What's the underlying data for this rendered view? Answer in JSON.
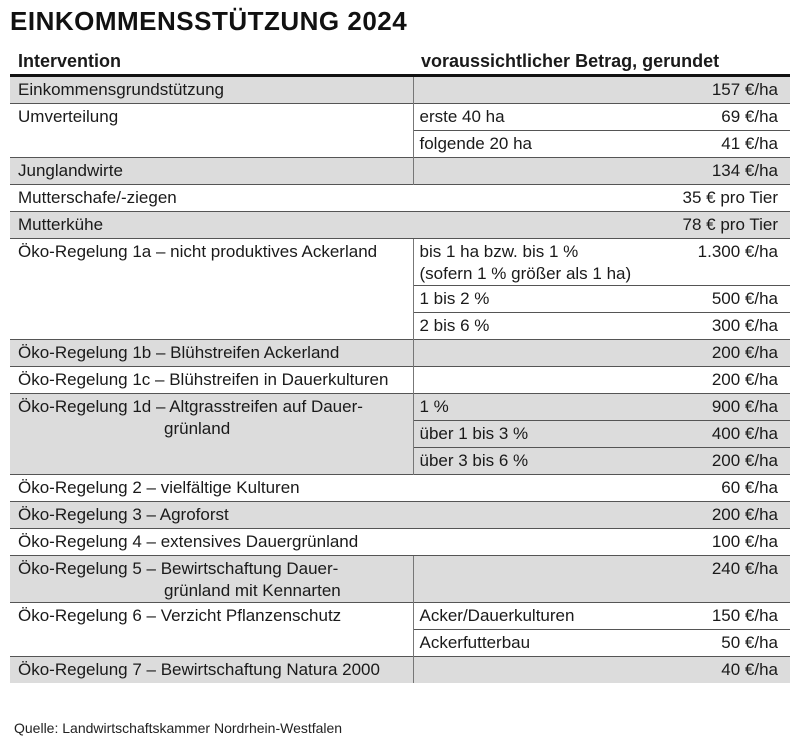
{
  "title": "EINKOMMENSSTÜTZUNG 2024",
  "header": {
    "col1": "Intervention",
    "col2": "voraussichtlicher Betrag, gerundet"
  },
  "rows": {
    "r1": {
      "name": "Einkommensgrundstützung",
      "value": "157 €/ha"
    },
    "r2": {
      "name": "Umverteilung",
      "c1": "erste 40 ha",
      "v1": "69 €/ha",
      "c2": "folgende 20 ha",
      "v2": "41 €/ha"
    },
    "r3": {
      "name": "Junglandwirte",
      "value": "134 €/ha"
    },
    "r4": {
      "name": "Mutterschafe/-ziegen",
      "value": "35 € pro Tier"
    },
    "r5": {
      "name": "Mutterkühe",
      "value": "78 € pro Tier"
    },
    "r6": {
      "name": "Öko-Regelung 1a – nicht produktives Ackerland",
      "c1a": "bis 1 ha bzw. bis 1 %",
      "c1b": "(sofern 1 % größer als 1 ha)",
      "v1": "1.300 €/ha",
      "c2": "1 bis 2 %",
      "v2": "500 €/ha",
      "c3": "2 bis 6 %",
      "v3": "300 €/ha"
    },
    "r7": {
      "name": "Öko-Regelung 1b – Blühstreifen Ackerland",
      "value": "200 €/ha"
    },
    "r8": {
      "name": "Öko-Regelung 1c – Blühstreifen in Dauerkulturen",
      "value": "200 €/ha"
    },
    "r9": {
      "name_a": "Öko-Regelung 1d – Altgrasstreifen auf Dauer-",
      "name_b": "grünland",
      "c1": "1 %",
      "v1": "900 €/ha",
      "c2": "über 1 bis 3 %",
      "v2": "400 €/ha",
      "c3": "über 3 bis 6 %",
      "v3": "200 €/ha"
    },
    "r10": {
      "name": "Öko-Regelung 2 – vielfältige Kulturen",
      "value": "60 €/ha"
    },
    "r11": {
      "name": "Öko-Regelung 3 – Agroforst",
      "value": "200 €/ha"
    },
    "r12": {
      "name": "Öko-Regelung 4 – extensives Dauergrünland",
      "value": "100 €/ha"
    },
    "r13": {
      "name_a": "Öko-Regelung 5 – Bewirtschaftung Dauer-",
      "name_b": "grünland mit Kennarten",
      "value": "240 €/ha"
    },
    "r14": {
      "name": "Öko-Regelung 6 – Verzicht Pflanzenschutz",
      "c1": "Acker/Dauerkulturen",
      "v1": "150 €/ha",
      "c2": "Ackerfutterbau",
      "v2": "50 €/ha"
    },
    "r15": {
      "name": "Öko-Regelung 7 – Bewirtschaftung Natura 2000",
      "value": "40 €/ha"
    }
  },
  "footer": "Quelle: Landwirtschaftskammer Nordrhein-Westfalen",
  "colors": {
    "shade": "#dcdcdc",
    "text": "#1a1a1a",
    "rule": "#111111"
  }
}
